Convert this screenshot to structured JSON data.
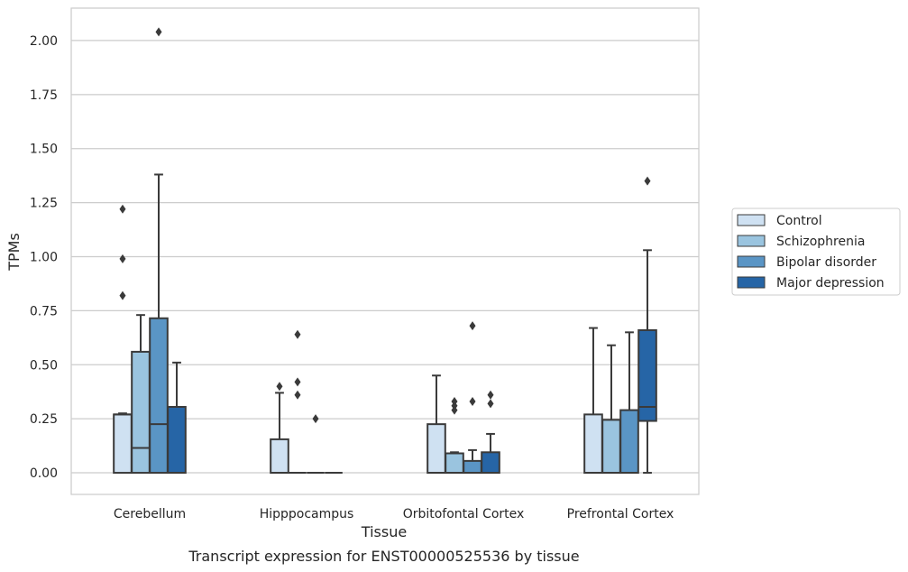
{
  "chart_data": {
    "type": "boxplot",
    "caption": "Transcript expression for ENST00000525536 by tissue",
    "xlabel": "Tissue",
    "ylabel": "TPMs",
    "ylim": [
      -0.1,
      2.15
    ],
    "yticks": [
      0.0,
      0.25,
      0.5,
      0.75,
      1.0,
      1.25,
      1.5,
      1.75,
      2.0
    ],
    "ytick_labels": [
      "0.00",
      "0.25",
      "0.50",
      "0.75",
      "1.00",
      "1.25",
      "1.50",
      "1.75",
      "2.00"
    ],
    "grid": "horizontal",
    "legend_position": "right",
    "categories": [
      "Cerebellum",
      "Hipppocampus",
      "Orbitofontal Cortex",
      "Prefrontal Cortex"
    ],
    "series": [
      {
        "name": "Control",
        "color": "#cfe1f2",
        "boxes": [
          {
            "whislo": 0.0,
            "q1": 0.0,
            "med": 0.27,
            "q3": 0.27,
            "whishi": 0.275,
            "fliers": [
              1.22,
              0.99,
              0.82
            ]
          },
          {
            "whislo": 0.0,
            "q1": 0.0,
            "med": 0.0,
            "q3": 0.155,
            "whishi": 0.37,
            "fliers": [
              0.4
            ]
          },
          {
            "whislo": 0.0,
            "q1": 0.0,
            "med": 0.0,
            "q3": 0.225,
            "whishi": 0.45,
            "fliers": []
          },
          {
            "whislo": 0.0,
            "q1": 0.0,
            "med": 0.0,
            "q3": 0.27,
            "whishi": 0.67,
            "fliers": []
          }
        ]
      },
      {
        "name": "Schizophrenia",
        "color": "#9ac4df",
        "boxes": [
          {
            "whislo": 0.0,
            "q1": 0.0,
            "med": 0.115,
            "q3": 0.56,
            "whishi": 0.73,
            "fliers": []
          },
          {
            "whislo": 0.0,
            "q1": 0.0,
            "med": 0.0,
            "q3": 0.0,
            "whishi": 0.0,
            "fliers": [
              0.64,
              0.42,
              0.36
            ]
          },
          {
            "whislo": 0.0,
            "q1": 0.0,
            "med": 0.0,
            "q3": 0.09,
            "whishi": 0.095,
            "fliers": [
              0.33,
              0.31,
              0.29
            ]
          },
          {
            "whislo": 0.0,
            "q1": 0.0,
            "med": 0.0,
            "q3": 0.245,
            "whishi": 0.59,
            "fliers": []
          }
        ]
      },
      {
        "name": "Bipolar disorder",
        "color": "#5a95c5",
        "boxes": [
          {
            "whislo": 0.0,
            "q1": 0.0,
            "med": 0.225,
            "q3": 0.715,
            "whishi": 1.38,
            "fliers": [
              2.04
            ]
          },
          {
            "whislo": 0.0,
            "q1": 0.0,
            "med": 0.0,
            "q3": 0.0,
            "whishi": 0.0,
            "fliers": [
              0.25
            ]
          },
          {
            "whislo": 0.0,
            "q1": 0.0,
            "med": 0.0,
            "q3": 0.055,
            "whishi": 0.105,
            "fliers": [
              0.68,
              0.33
            ]
          },
          {
            "whislo": 0.0,
            "q1": 0.0,
            "med": 0.0,
            "q3": 0.29,
            "whishi": 0.65,
            "fliers": []
          }
        ]
      },
      {
        "name": "Major depression",
        "color": "#2665a6",
        "boxes": [
          {
            "whislo": 0.0,
            "q1": 0.0,
            "med": 0.0,
            "q3": 0.305,
            "whishi": 0.51,
            "fliers": []
          },
          {
            "whislo": 0.0,
            "q1": 0.0,
            "med": 0.0,
            "q3": 0.0,
            "whishi": 0.0,
            "fliers": []
          },
          {
            "whislo": 0.0,
            "q1": 0.0,
            "med": 0.0,
            "q3": 0.095,
            "whishi": 0.18,
            "fliers": [
              0.36,
              0.32
            ]
          },
          {
            "whislo": 0.0,
            "q1": 0.24,
            "med": 0.305,
            "q3": 0.66,
            "whishi": 1.03,
            "fliers": [
              1.35
            ]
          }
        ]
      }
    ]
  }
}
